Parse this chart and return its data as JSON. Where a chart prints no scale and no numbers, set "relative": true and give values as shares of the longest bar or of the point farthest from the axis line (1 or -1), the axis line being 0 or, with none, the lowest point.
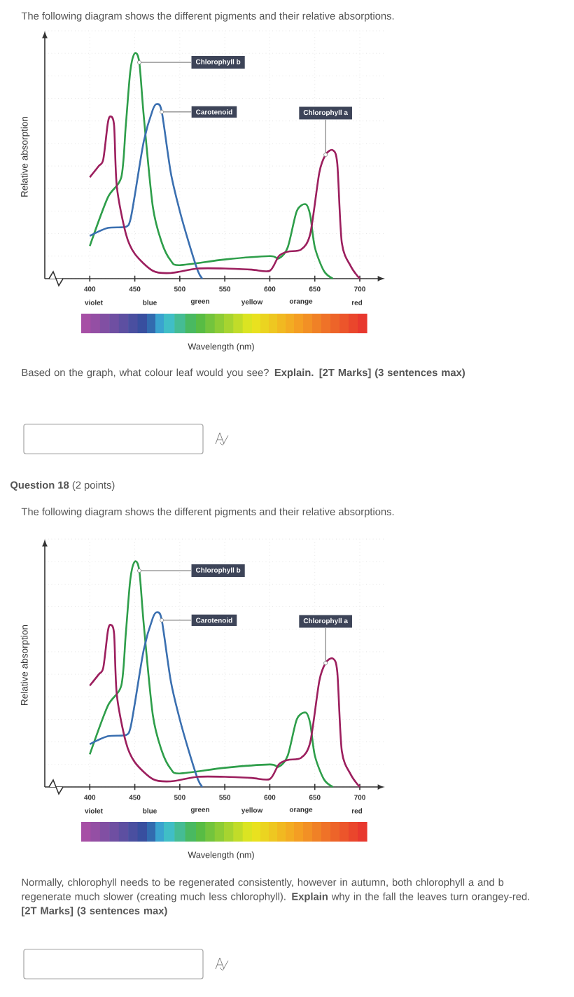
{
  "chart_data": [
    {
      "type": "line",
      "title": "The following diagram shows the different pigments and their relative absorptions.",
      "xlabel": "Wavelength (nm)",
      "ylabel": "Relative absorption",
      "relative": true,
      "grid": true,
      "xlim": [
        350,
        728
      ],
      "xticks": [
        400,
        450,
        500,
        550,
        600,
        650,
        700
      ],
      "series": [
        {
          "name": "Chlorophyll b",
          "color": "#2e9e4a",
          "x": [
            400,
            420,
            435,
            440,
            445,
            450,
            455,
            460,
            470,
            480,
            490,
            500,
            550,
            600,
            610,
            620,
            630,
            640,
            645,
            650,
            660,
            670
          ],
          "values": [
            0.145,
            0.36,
            0.45,
            0.68,
            0.92,
            1.0,
            0.96,
            0.72,
            0.32,
            0.16,
            0.08,
            0.06,
            0.085,
            0.1,
            0.09,
            0.14,
            0.3,
            0.33,
            0.28,
            0.14,
            0.035,
            0
          ]
        },
        {
          "name": "Carotenoid",
          "color": "#3a6fb0",
          "x": [
            400,
            420,
            440,
            445,
            450,
            460,
            470,
            475,
            480,
            490,
            500,
            510,
            520,
            525
          ],
          "values": [
            0.19,
            0.225,
            0.23,
            0.26,
            0.37,
            0.61,
            0.75,
            0.775,
            0.74,
            0.47,
            0.3,
            0.16,
            0.035,
            0
          ]
        },
        {
          "name": "Chlorophyll a",
          "color": "#9c1f5e",
          "x": [
            400,
            410,
            415,
            420,
            423,
            427,
            430,
            440,
            450,
            470,
            490,
            520,
            550,
            580,
            600,
            610,
            620,
            635,
            645,
            655,
            662,
            670,
            675,
            680,
            690,
            700
          ],
          "values": [
            0.45,
            0.5,
            0.53,
            0.69,
            0.72,
            0.68,
            0.41,
            0.2,
            0.11,
            0.035,
            0.025,
            0.045,
            0.045,
            0.04,
            0.035,
            0.1,
            0.12,
            0.13,
            0.2,
            0.47,
            0.55,
            0.57,
            0.51,
            0.16,
            0.055,
            0
          ]
        }
      ],
      "annotations": [
        "violet",
        "blue",
        "green",
        "yellow",
        "orange",
        "red",
        "Based on the graph, what colour leaf would you see? **Explain. [2T Marks] (3 sentences max)**"
      ]
    },
    {
      "type": "line",
      "title": "**Question 18** (2 points)",
      "subtitle": "The following diagram shows the different pigments and their relative absorptions.",
      "xlabel": "Wavelength (nm)",
      "ylabel": "Relative absorption",
      "relative": true,
      "grid": true,
      "xlim": [
        350,
        728
      ],
      "xticks": [
        400,
        450,
        500,
        550,
        600,
        650,
        700
      ],
      "series": [
        {
          "name": "Chlorophyll b",
          "color": "#2e9e4a",
          "x": [
            400,
            420,
            435,
            440,
            445,
            450,
            455,
            460,
            470,
            480,
            490,
            500,
            550,
            600,
            610,
            620,
            630,
            640,
            645,
            650,
            660,
            670
          ],
          "values": [
            0.145,
            0.36,
            0.45,
            0.68,
            0.92,
            1.0,
            0.96,
            0.72,
            0.32,
            0.16,
            0.08,
            0.06,
            0.085,
            0.1,
            0.09,
            0.14,
            0.3,
            0.33,
            0.28,
            0.14,
            0.035,
            0
          ]
        },
        {
          "name": "Carotenoid",
          "color": "#3a6fb0",
          "x": [
            400,
            420,
            440,
            445,
            450,
            460,
            470,
            475,
            480,
            490,
            500,
            510,
            520,
            525
          ],
          "values": [
            0.19,
            0.225,
            0.23,
            0.26,
            0.37,
            0.61,
            0.75,
            0.775,
            0.74,
            0.47,
            0.3,
            0.16,
            0.035,
            0
          ]
        },
        {
          "name": "Chlorophyll a",
          "color": "#9c1f5e",
          "x": [
            400,
            410,
            415,
            420,
            423,
            427,
            430,
            440,
            450,
            470,
            490,
            520,
            550,
            580,
            600,
            610,
            620,
            635,
            645,
            655,
            662,
            670,
            675,
            680,
            690,
            700
          ],
          "values": [
            0.45,
            0.5,
            0.53,
            0.69,
            0.72,
            0.68,
            0.41,
            0.2,
            0.11,
            0.035,
            0.025,
            0.045,
            0.045,
            0.04,
            0.035,
            0.1,
            0.12,
            0.13,
            0.2,
            0.47,
            0.55,
            0.57,
            0.51,
            0.16,
            0.055,
            0
          ]
        }
      ],
      "annotations": [
        "violet",
        "blue",
        "green",
        "yellow",
        "orange",
        "red",
        "Normally, chlorophyll needs to be regenerated consistently, however in autumn, both chlorophyll a and b regenerate much slower (creating much less chlorophyll). **Explain** why in the fall the leaves turn orangey-red. **[2T Marks] (3 sentences max)**"
      ]
    }
  ]
}
